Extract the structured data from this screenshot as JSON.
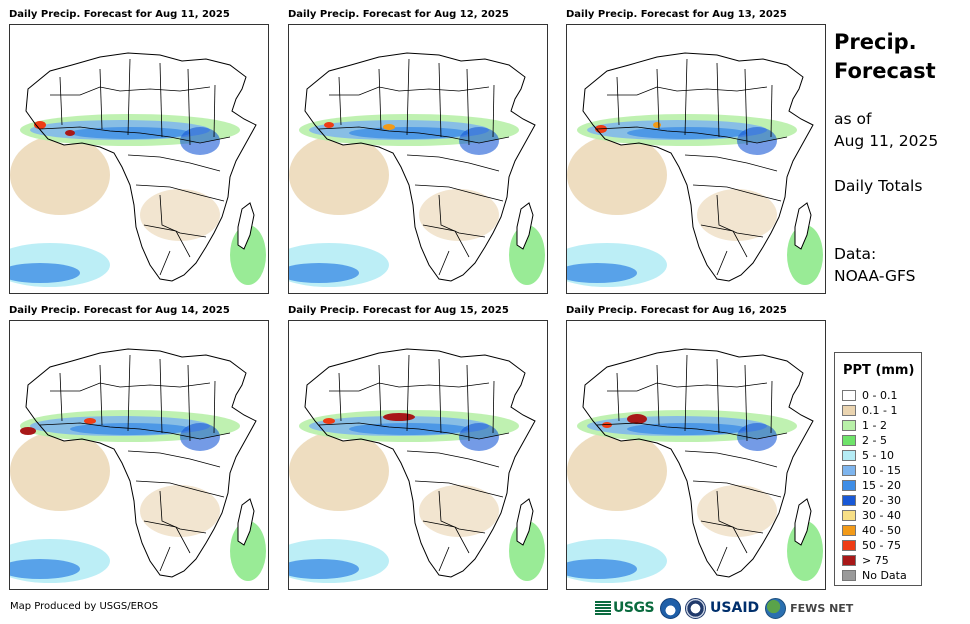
{
  "panels": [
    {
      "title": "Daily Precip. Forecast for Aug 11, 2025"
    },
    {
      "title": "Daily Precip. Forecast for Aug 12, 2025"
    },
    {
      "title": "Daily Precip. Forecast for Aug 13, 2025"
    },
    {
      "title": "Daily Precip. Forecast for Aug 14, 2025"
    },
    {
      "title": "Daily Precip. Forecast for Aug 15, 2025"
    },
    {
      "title": "Daily Precip. Forecast for Aug 16, 2025"
    }
  ],
  "side": {
    "title_line1": "Precip.",
    "title_line2": "Forecast",
    "asof_line1": "as of",
    "asof_line2": "Aug 11, 2025",
    "totals": "Daily Totals",
    "data_line1": "Data:",
    "data_line2": "NOAA-GFS"
  },
  "legend": {
    "title": "PPT (mm)",
    "items": [
      {
        "label": "0 - 0.1",
        "color": "#ffffff"
      },
      {
        "label": "0.1 - 1",
        "color": "#ead4b0"
      },
      {
        "label": "1 - 2",
        "color": "#b8f0a8"
      },
      {
        "label": "2 - 5",
        "color": "#6ee36a"
      },
      {
        "label": "5 - 10",
        "color": "#b5ecf5"
      },
      {
        "label": "10 - 15",
        "color": "#7eb5ee"
      },
      {
        "label": "15 - 20",
        "color": "#3f8ee6"
      },
      {
        "label": "20 - 30",
        "color": "#1858d6"
      },
      {
        "label": "30 - 40",
        "color": "#f7df86"
      },
      {
        "label": "40 - 50",
        "color": "#f29a18"
      },
      {
        "label": "50 - 75",
        "color": "#ee3c14"
      },
      {
        "label": "> 75",
        "color": "#a81818"
      },
      {
        "label": "No Data",
        "color": "#9a9a9a"
      }
    ]
  },
  "footer": {
    "credit": "Map Produced by USGS/EROS",
    "logos": {
      "usgs": "USGS",
      "usaid": "USAID",
      "fews": "FEWS NET"
    }
  }
}
